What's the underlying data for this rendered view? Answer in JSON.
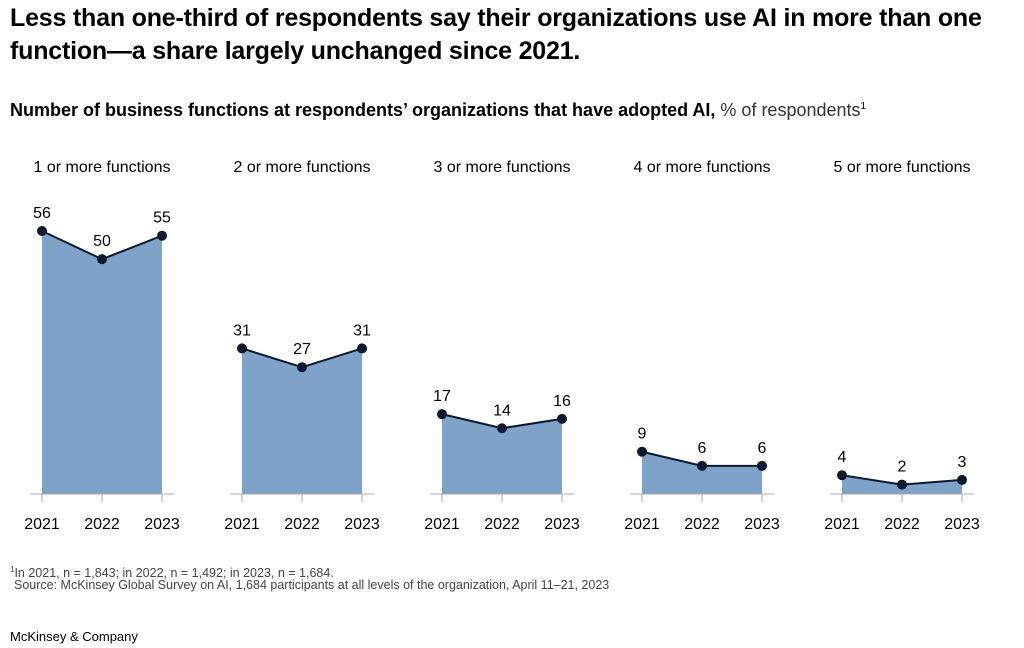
{
  "header": {
    "title": "Less than one-third of respondents say their organizations use AI in more than one function—a share largely unchanged since 2021.",
    "subtitle_bold": "Number of business functions at respondents’ organizations that have adopted AI,",
    "subtitle_unit": " % of respondents",
    "subtitle_footnote_mark": "1"
  },
  "chart_data": {
    "type": "area",
    "title": "Number of business functions at respondents’ organizations that have adopted AI",
    "ylabel": "% of respondents",
    "ylim": [
      0,
      56
    ],
    "grid": false,
    "colors": {
      "fill": "#7fa3c8",
      "line": "#0b1a2e",
      "marker": "#0b1a2e",
      "axis": "#aaaaaa"
    },
    "x": [
      "2021",
      "2022",
      "2023"
    ],
    "panels": [
      {
        "name": "1 or more functions",
        "values": [
          56,
          50,
          55
        ]
      },
      {
        "name": "2 or more functions",
        "values": [
          31,
          27,
          31
        ]
      },
      {
        "name": "3 or more functions",
        "values": [
          17,
          14,
          16
        ]
      },
      {
        "name": "4 or more functions",
        "values": [
          9,
          6,
          6
        ]
      },
      {
        "name": "5 or more functions",
        "values": [
          4,
          2,
          3
        ]
      }
    ]
  },
  "footer": {
    "footnote_mark": "1",
    "footnote": "In 2021, n = 1,843; in 2022, n = 1,492; in 2023, n = 1,684.",
    "source": "Source: McKinsey Global Survey on AI, 1,684 participants at all levels of the organization, April 11–21, 2023",
    "brand": "McKinsey & Company"
  }
}
